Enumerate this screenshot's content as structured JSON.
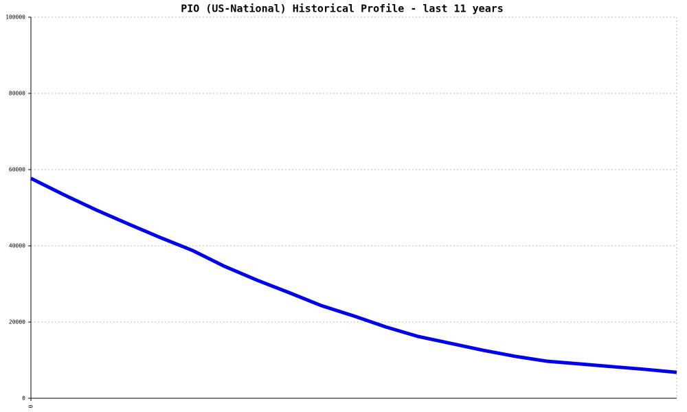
{
  "chart_data": {
    "type": "line",
    "title": "PIO (US-National) Historical Profile - last 11 years",
    "x": [
      0,
      1,
      2,
      3,
      4,
      5,
      6,
      7,
      8,
      9,
      10,
      11,
      12,
      13,
      14,
      15,
      16,
      17,
      18,
      19,
      20
    ],
    "series": [
      {
        "color": "#0000ee",
        "values": [
          57700,
          53500,
          49500,
          45800,
          42200,
          38800,
          34600,
          31000,
          27700,
          24300,
          21600,
          18700,
          16200,
          14400,
          12600,
          11000,
          9700,
          9000,
          8300,
          7600,
          6800
        ]
      }
    ],
    "xlim": [
      0,
      20
    ],
    "xticks": [
      0
    ],
    "ylim": [
      0,
      100000
    ],
    "yticks": [
      0,
      20000,
      40000,
      60000,
      80000,
      100000
    ],
    "grid": true
  }
}
